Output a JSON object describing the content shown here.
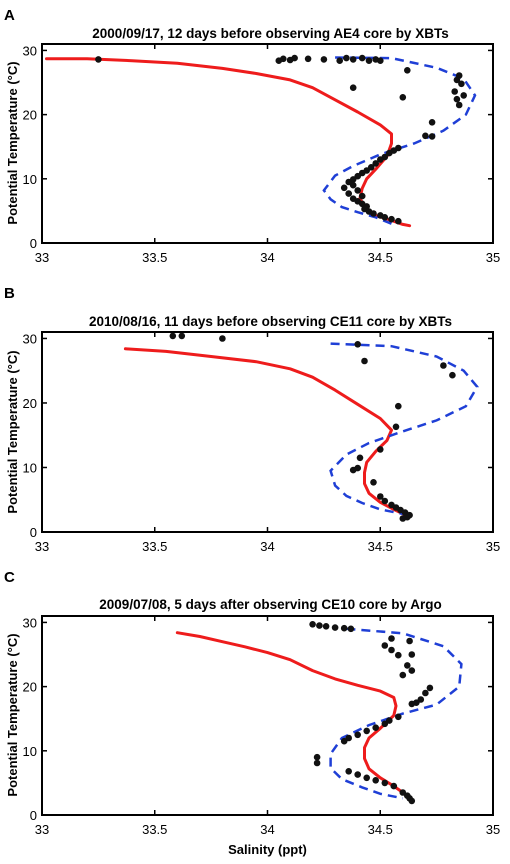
{
  "chart_data": [
    {
      "type": "line",
      "panel": "A",
      "title": "2000/09/17, 12 days before observing AE4 core by XBTs",
      "xlabel": "",
      "ylabel": "Potential Temperature (°C)",
      "xlim": [
        33,
        35
      ],
      "ylim": [
        0,
        31
      ],
      "xticks": [
        "33",
        "33.5",
        "34",
        "34.5",
        "35"
      ],
      "yticks": [
        "0",
        "10",
        "20",
        "30"
      ],
      "series": [
        {
          "style": "solid-red",
          "points": [
            [
              33.02,
              28.7
            ],
            [
              33.2,
              28.7
            ],
            [
              33.4,
              28.4
            ],
            [
              33.6,
              28.0
            ],
            [
              33.8,
              27.2
            ],
            [
              33.95,
              26.4
            ],
            [
              34.1,
              25.4
            ],
            [
              34.2,
              24.2
            ],
            [
              34.3,
              22.3
            ],
            [
              34.4,
              20.4
            ],
            [
              34.5,
              18.4
            ],
            [
              34.55,
              17.0
            ],
            [
              34.55,
              15.5
            ],
            [
              34.53,
              13.5
            ],
            [
              34.48,
              11.5
            ],
            [
              34.44,
              10.0
            ],
            [
              34.42,
              8.5
            ],
            [
              34.41,
              7.0
            ],
            [
              34.43,
              5.5
            ],
            [
              34.48,
              4.3
            ],
            [
              34.55,
              3.5
            ],
            [
              34.6,
              2.9
            ],
            [
              34.63,
              2.7
            ]
          ]
        },
        {
          "style": "dashed-blue",
          "points": [
            [
              34.3,
              28.9
            ],
            [
              34.55,
              28.8
            ],
            [
              34.75,
              27.3
            ],
            [
              34.87,
              25.6
            ],
            [
              34.92,
              23.0
            ],
            [
              34.88,
              20.0
            ],
            [
              34.78,
              17.5
            ],
            [
              34.65,
              15.5
            ],
            [
              34.5,
              13.8
            ],
            [
              34.38,
              12.0
            ],
            [
              34.3,
              10.5
            ],
            [
              34.25,
              8.2
            ],
            [
              34.28,
              6.8
            ],
            [
              34.33,
              5.6
            ],
            [
              34.4,
              4.8
            ],
            [
              34.48,
              4.0
            ],
            [
              34.55,
              3.0
            ]
          ]
        },
        {
          "style": "markers-black",
          "points": [
            [
              33.25,
              28.6
            ],
            [
              34.05,
              28.4
            ],
            [
              34.07,
              28.7
            ],
            [
              34.1,
              28.5
            ],
            [
              34.12,
              28.8
            ],
            [
              34.18,
              28.7
            ],
            [
              34.25,
              28.6
            ],
            [
              34.32,
              28.4
            ],
            [
              34.35,
              28.8
            ],
            [
              34.38,
              28.6
            ],
            [
              34.42,
              28.8
            ],
            [
              34.45,
              28.4
            ],
            [
              34.48,
              28.6
            ],
            [
              34.5,
              28.4
            ],
            [
              34.62,
              26.9
            ],
            [
              34.85,
              26.1
            ],
            [
              34.84,
              25.4
            ],
            [
              34.86,
              24.8
            ],
            [
              34.83,
              23.6
            ],
            [
              34.87,
              23.0
            ],
            [
              34.84,
              22.4
            ],
            [
              34.85,
              21.5
            ],
            [
              34.6,
              22.7
            ],
            [
              34.73,
              18.8
            ],
            [
              34.7,
              16.7
            ],
            [
              34.73,
              16.6
            ],
            [
              34.58,
              14.8
            ],
            [
              34.56,
              14.4
            ],
            [
              34.54,
              14.0
            ],
            [
              34.52,
              13.4
            ],
            [
              34.5,
              13.0
            ],
            [
              34.48,
              12.4
            ],
            [
              34.46,
              11.8
            ],
            [
              34.44,
              11.3
            ],
            [
              34.42,
              10.9
            ],
            [
              34.4,
              10.4
            ],
            [
              34.38,
              9.9
            ],
            [
              34.36,
              9.5
            ],
            [
              34.38,
              9.0
            ],
            [
              34.34,
              8.6
            ],
            [
              34.4,
              8.2
            ],
            [
              34.36,
              7.7
            ],
            [
              34.42,
              7.3
            ],
            [
              34.38,
              6.9
            ],
            [
              34.4,
              6.5
            ],
            [
              34.42,
              6.1
            ],
            [
              34.44,
              5.7
            ],
            [
              34.43,
              5.3
            ],
            [
              34.45,
              4.9
            ],
            [
              34.47,
              4.6
            ],
            [
              34.5,
              4.3
            ],
            [
              34.52,
              4.0
            ],
            [
              34.55,
              3.7
            ],
            [
              34.58,
              3.4
            ],
            [
              34.38,
              24.2
            ]
          ]
        }
      ]
    },
    {
      "type": "line",
      "panel": "B",
      "title": "2010/08/16, 11 days before observing CE11 core by XBTs",
      "xlabel": "",
      "ylabel": "Potential Temperature (°C)",
      "xlim": [
        33,
        35
      ],
      "ylim": [
        0,
        31
      ],
      "xticks": [
        "33",
        "33.5",
        "34",
        "34.5",
        "35"
      ],
      "yticks": [
        "0",
        "10",
        "20",
        "30"
      ],
      "series": [
        {
          "style": "solid-red",
          "points": [
            [
              33.37,
              28.4
            ],
            [
              33.55,
              28.0
            ],
            [
              33.75,
              27.2
            ],
            [
              33.95,
              26.4
            ],
            [
              34.1,
              25.3
            ],
            [
              34.2,
              24.0
            ],
            [
              34.3,
              22.0
            ],
            [
              34.4,
              19.8
            ],
            [
              34.5,
              17.6
            ],
            [
              34.55,
              15.8
            ],
            [
              34.53,
              14.2
            ],
            [
              34.48,
              12.5
            ],
            [
              34.44,
              10.8
            ],
            [
              34.43,
              9.2
            ],
            [
              34.43,
              7.5
            ],
            [
              34.45,
              6.0
            ],
            [
              34.5,
              4.6
            ],
            [
              34.56,
              3.5
            ],
            [
              34.62,
              2.5
            ]
          ]
        },
        {
          "style": "dashed-blue",
          "points": [
            [
              34.28,
              29.2
            ],
            [
              34.55,
              28.8
            ],
            [
              34.75,
              27.2
            ],
            [
              34.87,
              25.0
            ],
            [
              34.93,
              22.5
            ],
            [
              34.88,
              19.5
            ],
            [
              34.75,
              17.3
            ],
            [
              34.6,
              15.6
            ],
            [
              34.45,
              13.8
            ],
            [
              34.35,
              12.0
            ],
            [
              34.28,
              9.5
            ],
            [
              34.3,
              7.2
            ],
            [
              34.35,
              5.6
            ],
            [
              34.42,
              4.5
            ],
            [
              34.5,
              3.5
            ],
            [
              34.6,
              2.8
            ]
          ]
        },
        {
          "style": "markers-black",
          "points": [
            [
              33.58,
              30.4
            ],
            [
              33.62,
              30.4
            ],
            [
              33.8,
              30.0
            ],
            [
              34.4,
              29.1
            ],
            [
              34.43,
              26.5
            ],
            [
              34.78,
              25.8
            ],
            [
              34.82,
              24.3
            ],
            [
              34.58,
              19.5
            ],
            [
              34.57,
              16.3
            ],
            [
              34.5,
              12.8
            ],
            [
              34.41,
              11.5
            ],
            [
              34.38,
              9.6
            ],
            [
              34.4,
              9.9
            ],
            [
              34.47,
              7.7
            ],
            [
              34.5,
              5.5
            ],
            [
              34.52,
              4.8
            ],
            [
              34.55,
              4.2
            ],
            [
              34.57,
              3.8
            ],
            [
              34.59,
              3.4
            ],
            [
              34.61,
              3.0
            ],
            [
              34.63,
              2.6
            ],
            [
              34.62,
              2.3
            ],
            [
              34.6,
              2.1
            ]
          ]
        }
      ]
    },
    {
      "type": "line",
      "panel": "C",
      "title": "2009/07/08, 5 days after observing CE10 core by Argo",
      "xlabel": "Salinity (ppt)",
      "ylabel": "Potential Temperature (°C)",
      "xlim": [
        33,
        35
      ],
      "ylim": [
        0,
        31
      ],
      "xticks": [
        "33",
        "33.5",
        "34",
        "34.5",
        "35"
      ],
      "yticks": [
        "0",
        "10",
        "20",
        "30"
      ],
      "series": [
        {
          "style": "solid-red",
          "points": [
            [
              33.6,
              28.4
            ],
            [
              33.7,
              27.8
            ],
            [
              33.8,
              27.0
            ],
            [
              33.9,
              26.2
            ],
            [
              34.0,
              25.3
            ],
            [
              34.1,
              24.2
            ],
            [
              34.2,
              22.5
            ],
            [
              34.3,
              21.2
            ],
            [
              34.4,
              20.2
            ],
            [
              34.5,
              19.3
            ],
            [
              34.56,
              18.3
            ],
            [
              34.57,
              17.0
            ],
            [
              34.56,
              15.5
            ],
            [
              34.5,
              13.5
            ],
            [
              34.45,
              12.0
            ],
            [
              34.43,
              10.5
            ],
            [
              34.43,
              8.8
            ],
            [
              34.45,
              7.2
            ],
            [
              34.5,
              5.8
            ],
            [
              34.56,
              4.5
            ],
            [
              34.62,
              3.0
            ],
            [
              34.64,
              2.4
            ]
          ]
        },
        {
          "style": "dashed-blue",
          "points": [
            [
              34.35,
              29.0
            ],
            [
              34.6,
              28.3
            ],
            [
              34.78,
              26.3
            ],
            [
              34.86,
              23.5
            ],
            [
              34.85,
              20.0
            ],
            [
              34.75,
              17.2
            ],
            [
              34.6,
              15.8
            ],
            [
              34.45,
              14.0
            ],
            [
              34.33,
              12.0
            ],
            [
              34.28,
              9.5
            ],
            [
              34.28,
              7.3
            ],
            [
              34.33,
              5.6
            ],
            [
              34.42,
              4.3
            ],
            [
              34.5,
              3.3
            ],
            [
              34.6,
              2.6
            ]
          ]
        },
        {
          "style": "markers-black",
          "points": [
            [
              34.2,
              29.7
            ],
            [
              34.23,
              29.5
            ],
            [
              34.26,
              29.4
            ],
            [
              34.3,
              29.2
            ],
            [
              34.34,
              29.1
            ],
            [
              34.37,
              29.0
            ],
            [
              34.55,
              27.5
            ],
            [
              34.63,
              27.1
            ],
            [
              34.52,
              26.4
            ],
            [
              34.55,
              25.7
            ],
            [
              34.58,
              24.9
            ],
            [
              34.64,
              25.0
            ],
            [
              34.62,
              23.3
            ],
            [
              34.64,
              22.5
            ],
            [
              34.6,
              21.8
            ],
            [
              34.72,
              19.8
            ],
            [
              34.7,
              19.0
            ],
            [
              34.68,
              18.0
            ],
            [
              34.66,
              17.5
            ],
            [
              34.64,
              17.3
            ],
            [
              34.58,
              15.3
            ],
            [
              34.54,
              14.7
            ],
            [
              34.52,
              14.2
            ],
            [
              34.48,
              13.6
            ],
            [
              34.44,
              13.1
            ],
            [
              34.4,
              12.5
            ],
            [
              34.36,
              12.0
            ],
            [
              34.34,
              11.5
            ],
            [
              34.22,
              9.0
            ],
            [
              34.22,
              8.1
            ],
            [
              34.36,
              6.8
            ],
            [
              34.4,
              6.3
            ],
            [
              34.44,
              5.8
            ],
            [
              34.48,
              5.4
            ],
            [
              34.52,
              5.0
            ],
            [
              34.56,
              4.5
            ],
            [
              34.6,
              3.5
            ],
            [
              34.62,
              3.0
            ],
            [
              34.63,
              2.6
            ],
            [
              34.64,
              2.2
            ]
          ]
        }
      ]
    }
  ]
}
